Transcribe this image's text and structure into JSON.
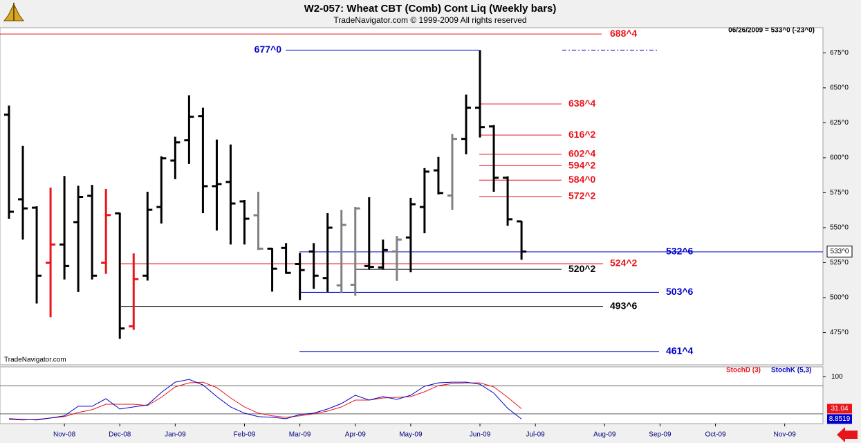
{
  "chart_data": [
    {
      "type": "ohlc",
      "title": "W2-057:  Wheat CBT (Comb) Cont Liq  (Weekly bars)",
      "subtitle": "TradeNavigator.com © 1999-2009 All rights reserved",
      "info": "06/26/2009 = 533^0 (-23^0)",
      "watermark": "TradeNavigator.com",
      "last_label": "533^0",
      "categories": [
        null,
        null,
        null,
        null,
        "Nov-08",
        null,
        null,
        null,
        "Dec-08",
        null,
        null,
        null,
        "Jan-09",
        null,
        null,
        null,
        null,
        "Feb-09",
        null,
        null,
        null,
        "Mar-09",
        null,
        null,
        null,
        "Apr-09",
        null,
        null,
        null,
        "May-09",
        null,
        null,
        null,
        null,
        "Jun-09",
        null,
        null,
        null,
        "Jul-09",
        null,
        null,
        null,
        null,
        "Aug-09",
        null,
        null,
        null,
        "Sep-09",
        null,
        null,
        null,
        "Oct-09",
        null,
        null,
        null,
        null,
        "Nov-09",
        null,
        null
      ],
      "open": [
        630.8,
        570.3,
        564.3,
        525,
        538,
        554,
        572.8,
        525,
        560.3,
        479.5,
        515.7,
        564.8,
        598,
        612.5,
        629.8,
        579.7,
        582.7,
        568.8,
        558.9,
        535,
        535.5,
        524,
        533,
        514,
        508.8,
        509.2,
        522.6,
        521.6,
        533,
        543,
        564.8,
        591,
        573,
        613.5,
        635.8,
        622.4,
        585.7,
        554.5,
        null,
        null,
        null,
        null,
        null,
        null,
        null,
        null,
        null,
        null,
        null,
        null,
        null,
        null,
        null,
        null,
        null,
        null,
        null,
        null,
        null
      ],
      "high": [
        637.3,
        608.5,
        565.3,
        578.7,
        587,
        580,
        580.6,
        577.7,
        560.8,
        531.6,
        575.7,
        601,
        615,
        644.7,
        635.8,
        613,
        609.5,
        569.8,
        575.7,
        535.5,
        539,
        532,
        539,
        560.4,
        562.8,
        564.8,
        571.8,
        541.5,
        544,
        571.3,
        592.6,
        600.6,
        617,
        645.2,
        677,
        623.4,
        586.7,
        554.9,
        null,
        null,
        null,
        null,
        null,
        null,
        null,
        null,
        null,
        null,
        null,
        null,
        null,
        null,
        null,
        null,
        null,
        null,
        null,
        null,
        null
      ],
      "low": [
        556.4,
        541.5,
        495.8,
        486,
        513,
        504,
        513,
        517,
        470.5,
        477,
        512.2,
        553,
        584.7,
        595.6,
        560.4,
        548,
        538,
        538,
        534,
        504.3,
        517,
        498.3,
        506.3,
        504,
        503.3,
        501.3,
        520,
        520,
        512,
        518.2,
        546,
        573.8,
        562.8,
        602.5,
        614.5,
        575.7,
        551.4,
        527.1,
        null,
        null,
        null,
        null,
        null,
        null,
        null,
        null,
        null,
        null,
        null,
        null,
        null,
        null,
        null,
        null,
        null,
        null,
        null,
        null,
        null
      ],
      "close": [
        561.4,
        563.8,
        515.7,
        538,
        522.6,
        572,
        515.7,
        559,
        478,
        513.2,
        562.8,
        599.6,
        611,
        629.3,
        579.7,
        581.2,
        567.3,
        556.4,
        535,
        520.7,
        517.7,
        519.7,
        515.7,
        550,
        552,
        563.8,
        522,
        534,
        541.5,
        566.8,
        590.1,
        574.8,
        613.5,
        635.8,
        621.9,
        585.7,
        556,
        533,
        null,
        null,
        null,
        null,
        null,
        null,
        null,
        null,
        null,
        null,
        null,
        null,
        null,
        null,
        null,
        null,
        null,
        null,
        null,
        null,
        null
      ],
      "bar_colors": [
        "#000000",
        "#000000",
        "#000000",
        "#e8151b",
        "#000000",
        "#000000",
        "#000000",
        "#e8151b",
        "#000000",
        "#e8151b",
        "#000000",
        "#000000",
        "#000000",
        "#000000",
        "#000000",
        "#000000",
        "#000000",
        "#000000",
        "#808080",
        "#000000",
        "#000000",
        "#000000",
        "#000000",
        "#000000",
        "#808080",
        "#808080",
        "#000000",
        "#000000",
        "#808080",
        "#000000",
        "#000000",
        "#000000",
        "#808080",
        "#000000",
        "#000000",
        "#000000",
        "#000000",
        "#000000",
        null,
        null,
        null,
        null,
        null,
        null,
        null,
        null,
        null,
        null,
        null,
        null,
        null,
        null,
        null,
        null,
        null,
        null,
        null,
        null,
        null
      ],
      "ylim": [
        452,
        693
      ],
      "yticks": [
        {
          "value": 475,
          "label": "475^0"
        },
        {
          "value": 500,
          "label": "500^0"
        },
        {
          "value": 525,
          "label": "525^0"
        },
        {
          "value": 550,
          "label": "550^0"
        },
        {
          "value": 575,
          "label": "575^0"
        },
        {
          "value": 600,
          "label": "600^0"
        },
        {
          "value": 625,
          "label": "625^0"
        },
        {
          "value": 650,
          "label": "650^0"
        },
        {
          "value": 675,
          "label": "675^0"
        }
      ],
      "levels": [
        {
          "value": 688.5,
          "label": "688^4",
          "color": "#e8151b"
        },
        {
          "value": 677,
          "label": "677^0",
          "color": "#0000c8"
        },
        {
          "value": 638.5,
          "label": "638^4",
          "color": "#e8151b"
        },
        {
          "value": 616.25,
          "label": "616^2",
          "color": "#e8151b"
        },
        {
          "value": 602.5,
          "label": "602^4",
          "color": "#e8151b"
        },
        {
          "value": 594.25,
          "label": "594^2",
          "color": "#e8151b"
        },
        {
          "value": 584,
          "label": "584^0",
          "color": "#e8151b"
        },
        {
          "value": 572.25,
          "label": "572^2",
          "color": "#e8151b"
        },
        {
          "value": 532.75,
          "label": "532^6",
          "color": "#0000c8"
        },
        {
          "value": 524.25,
          "label": "524^2",
          "color": "#e8151b"
        },
        {
          "value": 520.25,
          "label": "520^2",
          "color": "#000000"
        },
        {
          "value": 503.75,
          "label": "503^6",
          "color": "#0000c8"
        },
        {
          "value": 493.75,
          "label": "493^6",
          "color": "#000000"
        },
        {
          "value": 461.5,
          "label": "461^4",
          "color": "#0000c8"
        }
      ]
    },
    {
      "type": "line",
      "ylim": [
        -1,
        121
      ],
      "yticks": [
        100
      ],
      "levels": [
        80,
        20
      ],
      "series": [
        {
          "name": "StochD (3)",
          "color": "#e8151b",
          "values": [
            8.1,
            6.7,
            8.1,
            11.1,
            14.1,
            23,
            28.9,
            40.7,
            40.7,
            40.7,
            37.8,
            55.6,
            77.8,
            86.7,
            88.1,
            76.3,
            54.1,
            34.8,
            21.5,
            15.6,
            12.6,
            15.6,
            20,
            25.9,
            34.8,
            49.6,
            49.6,
            54.1,
            55.6,
            57,
            67.4,
            80.7,
            85.2,
            86.7,
            86.7,
            77.8,
            55.6,
            31.04,
            null,
            null,
            null,
            null,
            null,
            null,
            null,
            null,
            null,
            null,
            null,
            null,
            null,
            null,
            null,
            null,
            null,
            null,
            null,
            null,
            null
          ]
        },
        {
          "name": "StochK (5,3)",
          "color": "#0000c8",
          "values": [
            9.6,
            8.1,
            6.7,
            11.1,
            15.6,
            36.3,
            36.3,
            52.6,
            30.4,
            34.8,
            39.3,
            65.9,
            88.1,
            94.1,
            82.2,
            57,
            34.8,
            21.5,
            14.1,
            12.6,
            9.6,
            18.5,
            21.5,
            30.4,
            42.2,
            60,
            49.6,
            57,
            51.1,
            60,
            79.3,
            86.7,
            88.1,
            88.1,
            83.7,
            64.4,
            31.9,
            8.8519,
            null,
            null,
            null,
            null,
            null,
            null,
            null,
            null,
            null,
            null,
            null,
            null,
            null,
            null,
            null,
            null,
            null,
            null,
            null,
            null,
            null
          ]
        }
      ]
    }
  ]
}
